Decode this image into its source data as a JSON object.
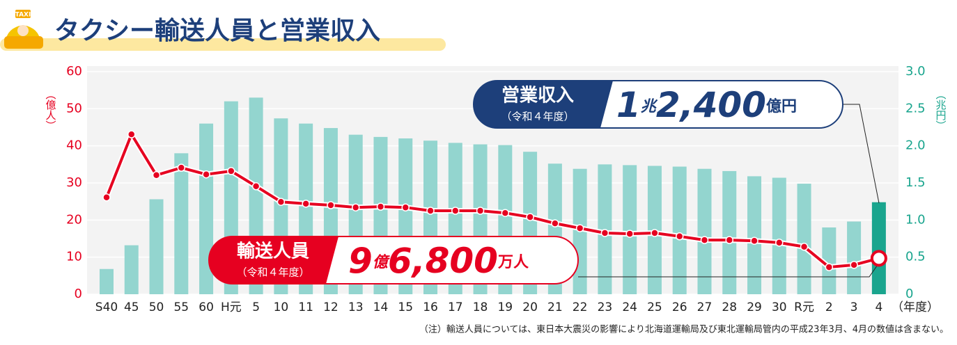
{
  "chart_data": {
    "type": "bar-line",
    "title": "タクシー輸送人員と営業収入",
    "y_label": "（億人）",
    "y2_label": "（兆円）",
    "x_label": "（年度）",
    "note": "（注）輸送人員については、東日本大震災の影響により北海道運輸局及び東北運輸局管内の平成23年3月、4月の数値は含まない。",
    "categories": [
      "S40",
      "45",
      "50",
      "55",
      "60",
      "H元",
      "5",
      "10",
      "11",
      "12",
      "13",
      "14",
      "15",
      "16",
      "17",
      "18",
      "19",
      "20",
      "21",
      "22",
      "23",
      "24",
      "25",
      "26",
      "27",
      "28",
      "29",
      "30",
      "R元",
      "2",
      "3",
      "4"
    ],
    "ylim": [
      0,
      60
    ],
    "yticks": [
      0,
      10,
      20,
      30,
      40,
      50,
      60
    ],
    "y2lim": [
      0,
      3
    ],
    "y2ticks": [
      0,
      0.5,
      {
        "value": 1,
        "label": "1.0"
      },
      1.5,
      {
        "value": 2,
        "label": "2.0"
      },
      2.5,
      {
        "value": 3,
        "label": "3.0"
      }
    ],
    "grid": true,
    "series": [
      {
        "name": "営業収入",
        "type": "bar",
        "axis": "y2",
        "color": "#93d5cf",
        "highlight_color": "#1aa58e",
        "values": [
          0.34,
          0.66,
          1.28,
          1.9,
          2.3,
          2.6,
          2.65,
          2.37,
          2.3,
          2.24,
          2.15,
          2.12,
          2.1,
          2.07,
          2.04,
          2.02,
          2.01,
          1.92,
          1.76,
          1.69,
          1.75,
          1.74,
          1.73,
          1.72,
          1.69,
          1.66,
          1.59,
          1.57,
          1.49,
          0.9,
          0.98,
          1.24
        ]
      },
      {
        "name": "輸送人員",
        "type": "line",
        "axis": "y",
        "color": "#e60020",
        "values": [
          26.1,
          43.1,
          32.1,
          34.1,
          32.3,
          33.2,
          29.1,
          24.9,
          24.4,
          24.0,
          23.4,
          23.6,
          23.4,
          22.5,
          22.5,
          22.5,
          21.9,
          20.8,
          19.1,
          17.8,
          16.5,
          16.3,
          16.5,
          15.6,
          14.6,
          14.6,
          14.4,
          13.9,
          12.8,
          7.3,
          7.9,
          9.68
        ]
      }
    ],
    "annotations": [
      {
        "label": "営業収入",
        "sub": "（令和４年度）",
        "parts": [
          "1",
          "兆",
          "2,400",
          "億円"
        ]
      },
      {
        "label": "輸送人員",
        "sub": "（令和４年度）",
        "parts": [
          "9",
          "億",
          "6,800",
          "万人"
        ]
      }
    ]
  }
}
